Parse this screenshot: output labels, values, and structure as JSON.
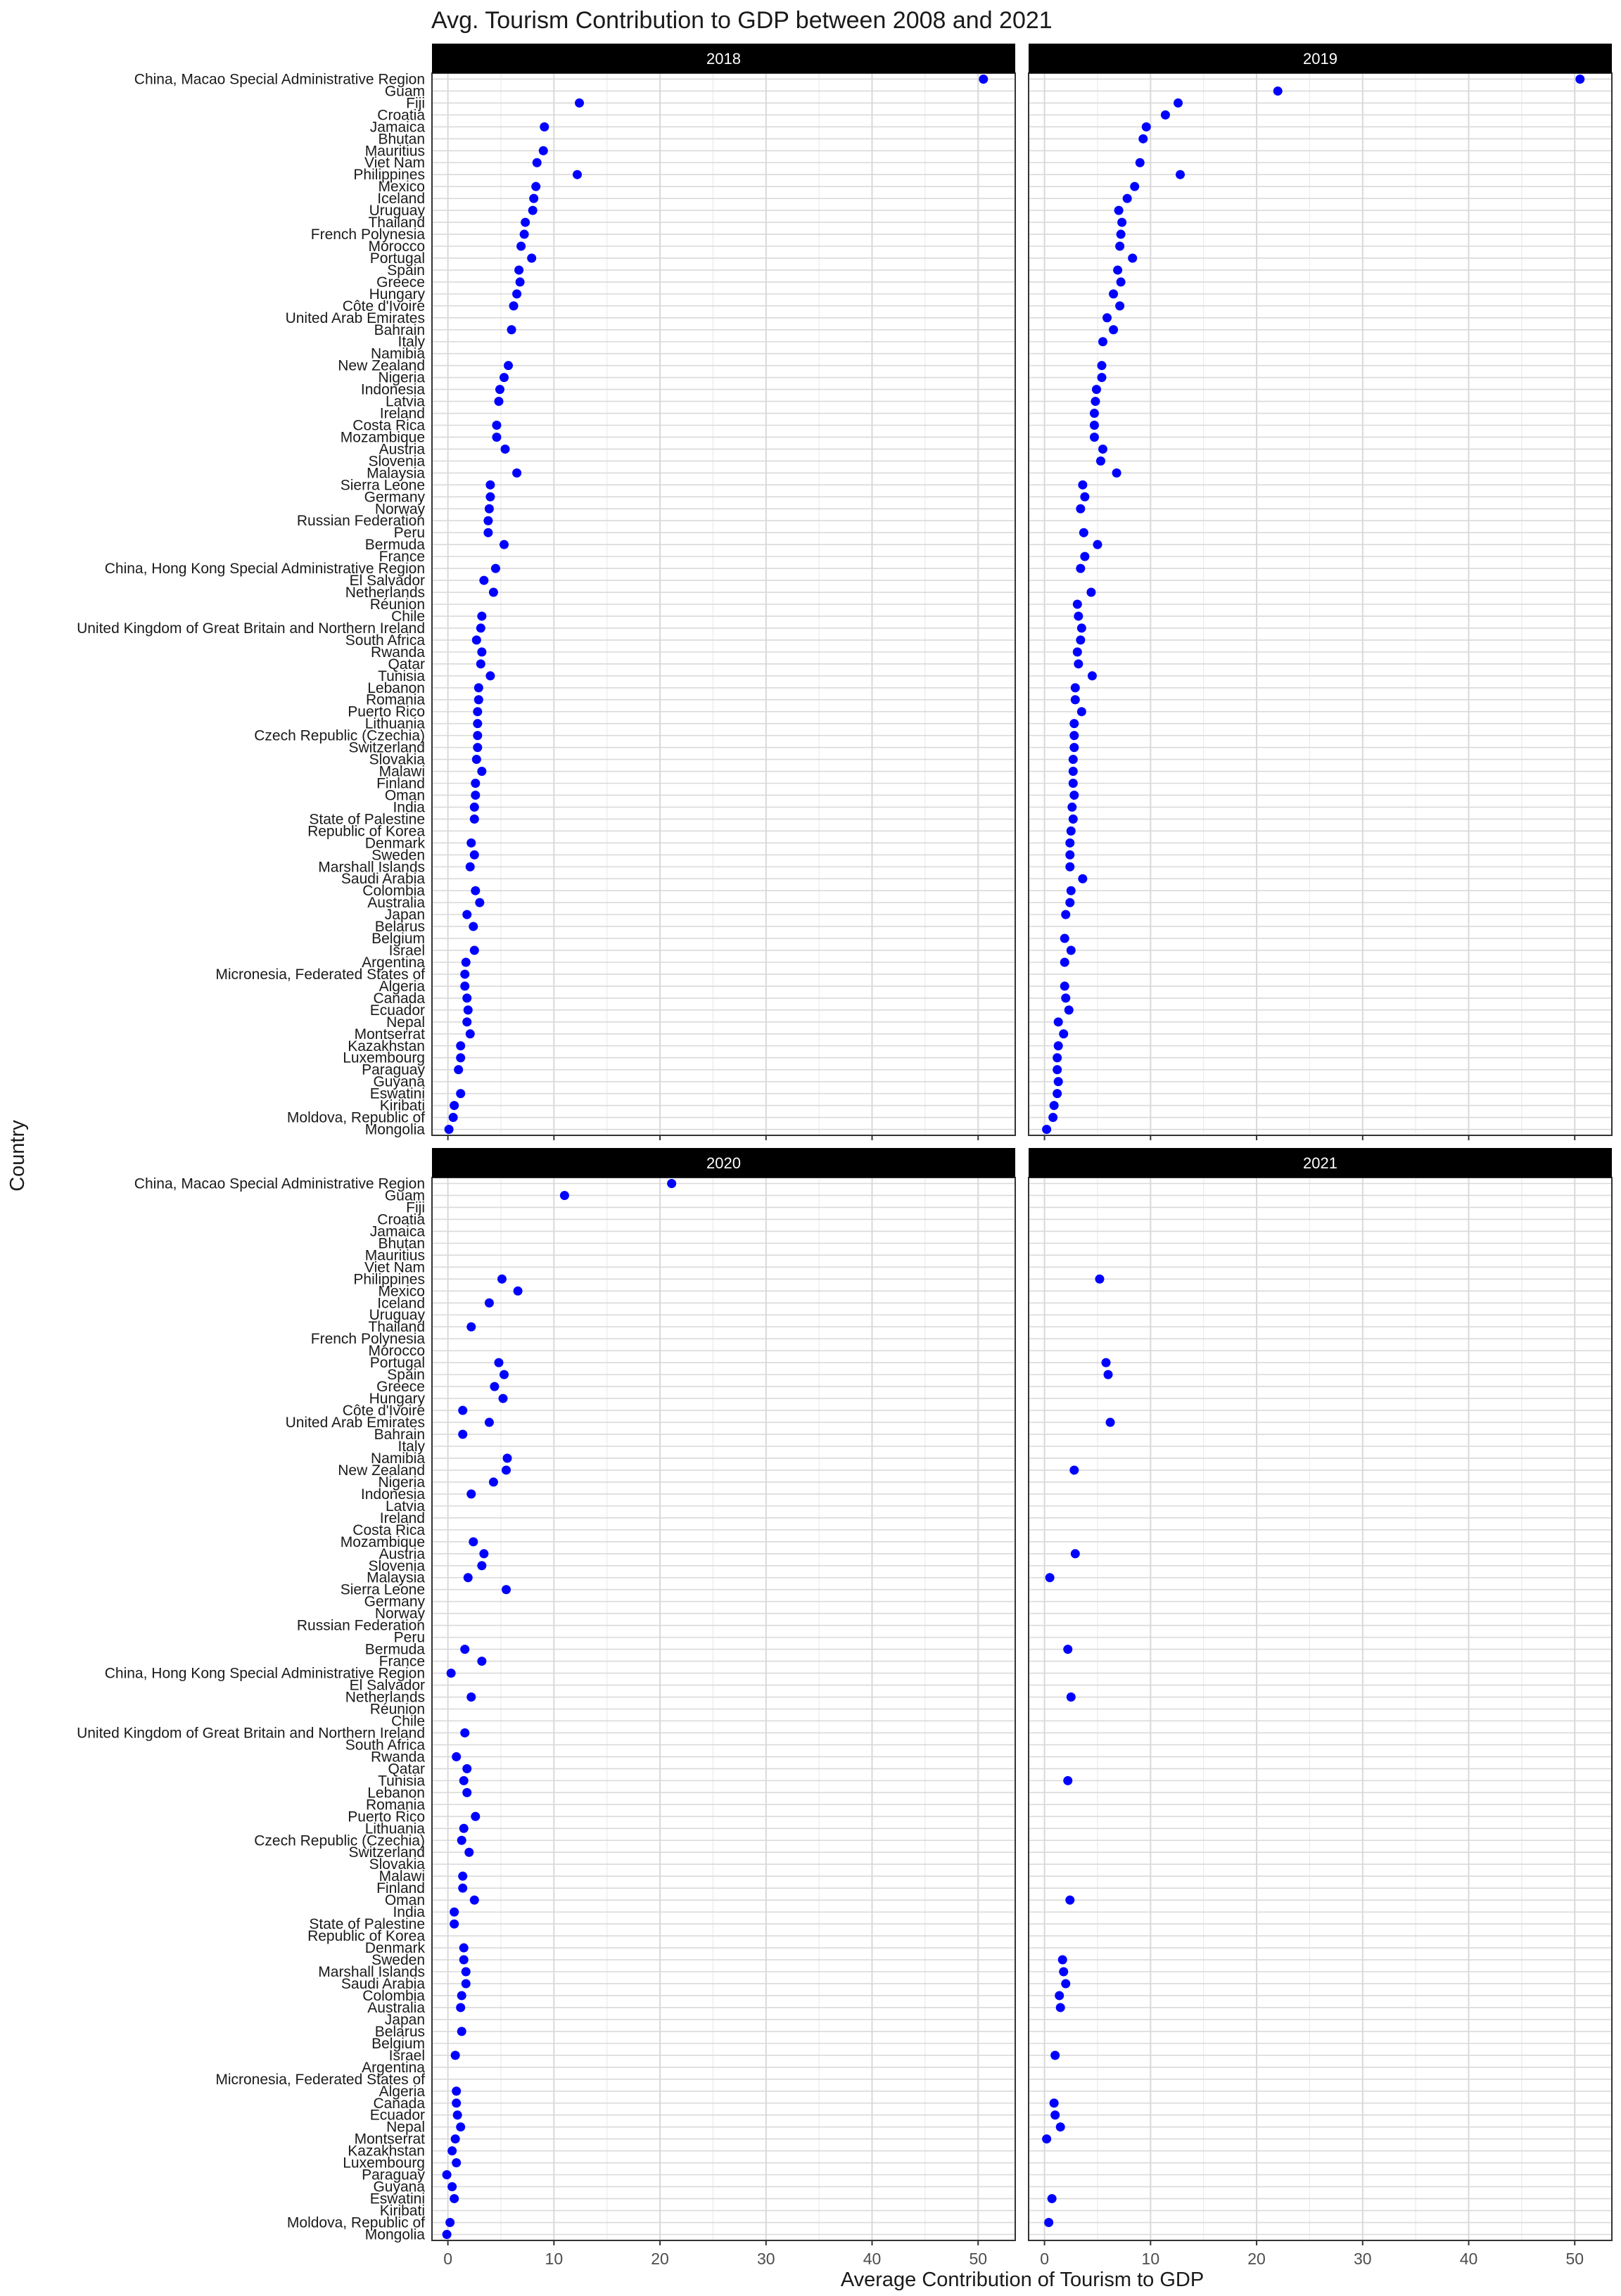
{
  "chart_data": {
    "type": "scatter",
    "title": "Avg. Tourism Contribution to GDP between 2008 and 2021",
    "xlabel": "Average Contribution of Tourism to GDP",
    "ylabel": "Country",
    "xlim": [
      -1.5,
      53.5
    ],
    "x_ticks": [
      0,
      10,
      20,
      30,
      40,
      50
    ],
    "grid": true,
    "point_color": "#0000ff",
    "categories": [
      "China, Macao Special Administrative Region",
      "Guam",
      "Fiji",
      "Croatia",
      "Jamaica",
      "Bhutan",
      "Mauritius",
      "Viet Nam",
      "Philippines",
      "Mexico",
      "Iceland",
      "Uruguay",
      "Thailand",
      "French Polynesia",
      "Morocco",
      "Portugal",
      "Spain",
      "Greece",
      "Hungary",
      "Côte d'Ivoire",
      "United Arab Emirates",
      "Bahrain",
      "Italy",
      "Namibia",
      "New Zealand",
      "Nigeria",
      "Indonesia",
      "Latvia",
      "Ireland",
      "Costa Rica",
      "Mozambique",
      "Austria",
      "Slovenia",
      "Malaysia",
      "Sierra Leone",
      "Germany",
      "Norway",
      "Russian Federation",
      "Peru",
      "Bermuda",
      "France",
      "China, Hong Kong Special Administrative Region",
      "El Salvador",
      "Netherlands",
      "Réunion",
      "Chile",
      "United Kingdom of Great Britain and Northern Ireland",
      "South Africa",
      "Rwanda",
      "Qatar",
      "Tunisia",
      "Lebanon",
      "Romania",
      "Puerto Rico",
      "Lithuania",
      "Czech Republic (Czechia)",
      "Switzerland",
      "Slovakia",
      "Malawi",
      "Finland",
      "Oman",
      "India",
      "State of Palestine",
      "Republic of Korea",
      "Denmark",
      "Sweden",
      "Marshall Islands",
      "Saudi Arabia",
      "Colombia",
      "Australia",
      "Japan",
      "Belarus",
      "Belgium",
      "Israel",
      "Argentina",
      "Micronesia, Federated States of",
      "Algeria",
      "Canada",
      "Ecuador",
      "Nepal",
      "Montserrat",
      "Kazakhstan",
      "Luxembourg",
      "Paraguay",
      "Guyana",
      "Eswatini",
      "Kiribati",
      "Moldova, Republic of",
      "Mongolia"
    ],
    "panels": [
      {
        "label": "2018",
        "values": [
          50.5,
          null,
          12.4,
          null,
          9.1,
          null,
          9.0,
          8.4,
          12.2,
          8.3,
          8.1,
          8.0,
          7.3,
          7.2,
          6.9,
          7.9,
          6.7,
          6.8,
          6.5,
          6.2,
          null,
          6.0,
          null,
          null,
          5.7,
          5.3,
          4.9,
          4.8,
          null,
          4.6,
          4.6,
          5.4,
          null,
          6.5,
          4.0,
          4.0,
          3.9,
          3.8,
          3.8,
          5.3,
          null,
          4.5,
          3.4,
          4.3,
          null,
          3.2,
          3.1,
          2.7,
          3.2,
          3.1,
          4.0,
          2.9,
          2.9,
          2.8,
          2.8,
          2.8,
          2.8,
          2.7,
          3.2,
          2.6,
          2.6,
          2.5,
          2.5,
          null,
          2.2,
          2.5,
          2.1,
          null,
          2.6,
          3.0,
          1.8,
          2.4,
          null,
          2.5,
          1.7,
          1.6,
          1.6,
          1.8,
          1.9,
          1.8,
          2.1,
          1.2,
          1.2,
          1.0,
          null,
          1.2,
          0.6,
          0.5,
          0.1
        ]
      },
      {
        "label": "2019",
        "values": [
          50.5,
          22.0,
          12.6,
          11.4,
          9.6,
          9.3,
          null,
          9.0,
          12.8,
          8.5,
          7.8,
          7.0,
          7.3,
          7.2,
          7.1,
          8.3,
          6.9,
          7.2,
          6.5,
          7.1,
          5.9,
          6.5,
          5.5,
          null,
          5.4,
          5.4,
          4.9,
          4.8,
          4.7,
          4.7,
          4.7,
          5.5,
          5.3,
          6.8,
          3.6,
          3.8,
          3.4,
          null,
          3.7,
          5.0,
          3.8,
          3.4,
          null,
          4.4,
          3.1,
          3.2,
          3.5,
          3.4,
          3.1,
          3.2,
          4.5,
          2.9,
          2.9,
          3.5,
          2.8,
          2.8,
          2.8,
          2.7,
          2.7,
          2.7,
          2.8,
          2.6,
          2.7,
          2.5,
          2.4,
          2.4,
          2.4,
          3.6,
          2.5,
          2.4,
          2.0,
          null,
          1.9,
          2.5,
          1.9,
          null,
          1.9,
          2.0,
          2.3,
          1.3,
          1.8,
          1.3,
          1.2,
          1.2,
          1.3,
          1.2,
          0.9,
          0.8,
          0.2
        ]
      },
      {
        "label": "2020",
        "values": [
          21.1,
          11.0,
          null,
          null,
          null,
          null,
          null,
          null,
          5.1,
          6.6,
          3.9,
          null,
          2.2,
          null,
          null,
          4.8,
          5.3,
          4.4,
          5.2,
          1.4,
          3.9,
          1.4,
          null,
          5.6,
          5.5,
          4.3,
          2.2,
          null,
          null,
          null,
          2.4,
          3.4,
          3.2,
          1.9,
          5.5,
          null,
          null,
          null,
          null,
          1.6,
          3.2,
          0.3,
          null,
          2.2,
          null,
          null,
          1.6,
          null,
          0.8,
          1.8,
          1.5,
          1.8,
          null,
          2.6,
          1.5,
          1.3,
          2.0,
          null,
          1.4,
          1.4,
          2.5,
          0.6,
          0.6,
          null,
          1.5,
          1.5,
          1.7,
          1.7,
          1.3,
          1.2,
          null,
          1.3,
          null,
          0.7,
          null,
          null,
          0.8,
          0.8,
          0.9,
          1.2,
          0.7,
          0.4,
          0.8,
          -0.1,
          0.4,
          0.6,
          null,
          0.2,
          -0.1
        ]
      },
      {
        "label": "2021",
        "values": [
          null,
          null,
          null,
          null,
          null,
          null,
          null,
          null,
          5.2,
          null,
          null,
          null,
          null,
          null,
          null,
          5.8,
          6.0,
          null,
          null,
          null,
          6.2,
          null,
          null,
          null,
          2.8,
          null,
          null,
          null,
          null,
          null,
          null,
          2.9,
          null,
          0.5,
          null,
          null,
          null,
          null,
          null,
          2.2,
          null,
          null,
          null,
          2.5,
          null,
          null,
          null,
          null,
          null,
          null,
          2.2,
          null,
          null,
          null,
          null,
          null,
          null,
          null,
          null,
          null,
          2.4,
          null,
          null,
          null,
          null,
          1.7,
          1.8,
          2.0,
          1.4,
          1.5,
          null,
          null,
          null,
          1.0,
          null,
          null,
          null,
          0.9,
          1.0,
          1.5,
          0.2,
          null,
          null,
          null,
          null,
          0.7,
          null,
          0.4,
          null
        ]
      }
    ]
  }
}
